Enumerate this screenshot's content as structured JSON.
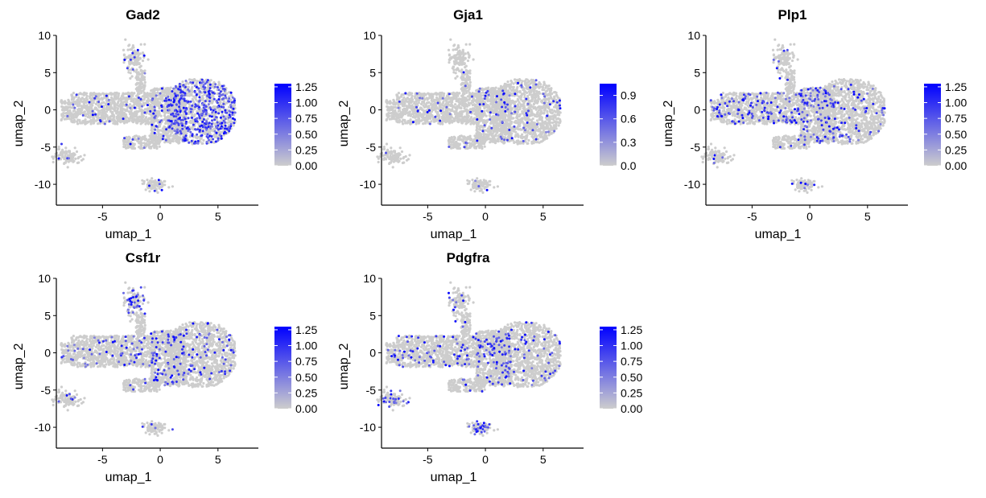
{
  "figure": {
    "background": "#ffffff",
    "point_color_low": "#cdcdcd",
    "point_color_high": "#0000ff",
    "marker": "dot"
  },
  "chart_data": [
    {
      "type": "scatter",
      "title": "Gad2",
      "xlabel": "umap_1",
      "ylabel": "umap_2",
      "xlim": [
        -9,
        8.5
      ],
      "ylim": [
        -12.8,
        10
      ],
      "x_ticks": [
        -5,
        0,
        5
      ],
      "y_ticks": [
        10,
        5,
        0,
        -5,
        -10
      ],
      "x_tick_labels": [
        "-5",
        "0",
        "5"
      ],
      "y_tick_labels": [
        "10",
        "5",
        "0",
        "-5",
        "-10"
      ],
      "legend": {
        "position": "right",
        "min": 0,
        "max": 1.3,
        "tick_values": [
          0,
          0.25,
          0.5,
          0.75,
          1.0,
          1.25
        ],
        "tick_labels": [
          "0.00",
          "0.25",
          "0.50",
          "0.75",
          "1.00",
          "1.25"
        ]
      },
      "expression": {
        "clusters": {
          "left": 0.04,
          "mainLeft": 0.06,
          "mainRight": 0.34,
          "upper": 0.1,
          "smallLeft": 0.06,
          "bottom": 0.06
        }
      }
    },
    {
      "type": "scatter",
      "title": "Gja1",
      "xlabel": "umap_1",
      "ylabel": "umap_2",
      "xlim": [
        -9,
        8.5
      ],
      "ylim": [
        -12.8,
        10
      ],
      "x_ticks": [
        -5,
        0,
        5
      ],
      "y_ticks": [
        10,
        5,
        0,
        -5,
        -10
      ],
      "x_tick_labels": [
        "-5",
        "0",
        "5"
      ],
      "y_tick_labels": [
        "10",
        "5",
        "0",
        "-5",
        "-10"
      ],
      "legend": {
        "position": "right",
        "min": 0,
        "max": 1.05,
        "tick_values": [
          0,
          0.3,
          0.6,
          0.9
        ],
        "tick_labels": [
          "0.0",
          "0.3",
          "0.6",
          "0.9"
        ]
      },
      "expression": {
        "clusters": {
          "left": 0.03,
          "mainLeft": 0.03,
          "mainRight": 0.04,
          "upper": 0.02,
          "smallLeft": 0.02,
          "bottom": 0.03
        }
      }
    },
    {
      "type": "scatter",
      "title": "Plp1",
      "xlabel": "umap_1",
      "ylabel": "umap_2",
      "xlim": [
        -9,
        8.5
      ],
      "ylim": [
        -12.8,
        10
      ],
      "x_ticks": [
        -5,
        0,
        5
      ],
      "y_ticks": [
        10,
        5,
        0,
        -5,
        -10
      ],
      "x_tick_labels": [
        "-5",
        "0",
        "5"
      ],
      "y_tick_labels": [
        "10",
        "5",
        "0",
        "-5",
        "-10"
      ],
      "legend": {
        "position": "right",
        "min": 0,
        "max": 1.3,
        "tick_values": [
          0,
          0.25,
          0.5,
          0.75,
          1.0,
          1.25
        ],
        "tick_labels": [
          "0.00",
          "0.25",
          "0.50",
          "0.75",
          "1.00",
          "1.25"
        ]
      },
      "expression": {
        "clusters": {
          "left": 0.12,
          "mainLeft": 0.14,
          "mainRight": 0.05,
          "upper": 0.03,
          "smallLeft": 0.04,
          "bottom": 0.04
        }
      }
    },
    {
      "type": "scatter",
      "title": "Csf1r",
      "xlabel": "umap_1",
      "ylabel": "umap_2",
      "xlim": [
        -9,
        8.5
      ],
      "ylim": [
        -12.8,
        10
      ],
      "x_ticks": [
        -5,
        0,
        5
      ],
      "y_ticks": [
        10,
        5,
        0,
        -5,
        -10
      ],
      "x_tick_labels": [
        "-5",
        "0",
        "5"
      ],
      "y_tick_labels": [
        "10",
        "5",
        "0",
        "-5",
        "-10"
      ],
      "legend": {
        "position": "right",
        "min": 0,
        "max": 1.3,
        "tick_values": [
          0,
          0.25,
          0.5,
          0.75,
          1.0,
          1.25
        ],
        "tick_labels": [
          "0.00",
          "0.25",
          "0.50",
          "0.75",
          "1.00",
          "1.25"
        ]
      },
      "expression": {
        "clusters": {
          "left": 0.07,
          "mainLeft": 0.08,
          "mainRight": 0.07,
          "upper": 0.3,
          "smallLeft": 0.08,
          "bottom": 0.1
        }
      }
    },
    {
      "type": "scatter",
      "title": "Pdgfra",
      "xlabel": "umap_1",
      "ylabel": "umap_2",
      "xlim": [
        -9,
        8.5
      ],
      "ylim": [
        -12.8,
        10
      ],
      "x_ticks": [
        -5,
        0,
        5
      ],
      "y_ticks": [
        10,
        5,
        0,
        -5,
        -10
      ],
      "x_tick_labels": [
        "-5",
        "0",
        "5"
      ],
      "y_tick_labels": [
        "10",
        "5",
        "0",
        "-5",
        "-10"
      ],
      "legend": {
        "position": "right",
        "min": 0,
        "max": 1.3,
        "tick_values": [
          0,
          0.25,
          0.5,
          0.75,
          1.0,
          1.25
        ],
        "tick_labels": [
          "0.00",
          "0.25",
          "0.50",
          "0.75",
          "1.00",
          "1.25"
        ]
      },
      "expression": {
        "clusters": {
          "left": 0.06,
          "mainLeft": 0.08,
          "mainRight": 0.06,
          "upper": 0.06,
          "smallLeft": 0.3,
          "bottom": 0.25
        }
      }
    }
  ]
}
